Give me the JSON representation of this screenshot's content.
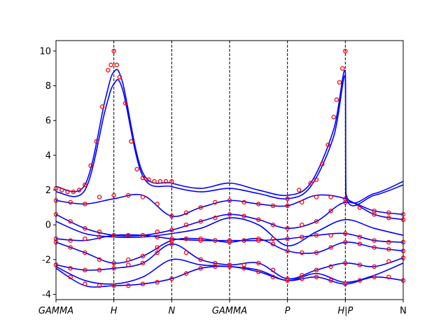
{
  "chart_data": {
    "type": "line",
    "title": "",
    "xlabel": "",
    "ylabel": "",
    "ylim": [
      -4.3,
      10.6
    ],
    "grid": false,
    "legend": "none",
    "y_ticks": [
      10,
      8,
      6,
      4,
      2,
      0,
      -2,
      -4
    ],
    "x_ticks": [
      {
        "x": 0.0,
        "label": "GAMMA",
        "italic": true,
        "vline": false
      },
      {
        "x": 1.0,
        "label": "H",
        "italic": true,
        "vline": true
      },
      {
        "x": 2.0,
        "label": "N",
        "italic": true,
        "vline": true
      },
      {
        "x": 3.0,
        "label": "GAMMA",
        "italic": true,
        "vline": true
      },
      {
        "x": 4.0,
        "label": "P",
        "italic": true,
        "vline": true
      },
      {
        "x": 5.0,
        "label": "H|P",
        "italic": true,
        "vline": true
      },
      {
        "x": 6.0,
        "label": "N",
        "italic": false,
        "vline": false
      }
    ],
    "colors": {
      "interpolated": "#0000ff",
      "dft": "#ff0000",
      "vline": "#000000"
    },
    "series": [
      {
        "kind": "interpolated-line",
        "x": [
          0,
          0.5,
          0.85,
          1,
          1.15,
          1.5,
          2,
          2.5,
          3,
          3.5,
          4,
          4.4,
          4.8,
          5,
          5.01,
          5.5,
          6
        ],
        "y": [
          2.2,
          2.3,
          7.2,
          8.8,
          8.2,
          3.0,
          2.4,
          2.1,
          2.4,
          2.0,
          1.7,
          2.4,
          5.5,
          8.8,
          1.8,
          1.8,
          2.5
        ]
      },
      {
        "kind": "interpolated-line",
        "x": [
          0,
          0.5,
          0.85,
          1,
          1.15,
          1.5,
          2,
          2.5,
          3,
          3.5,
          4,
          4.4,
          4.8,
          5,
          5.01,
          5.5,
          6
        ],
        "y": [
          1.9,
          2.0,
          6.6,
          8.1,
          7.8,
          2.8,
          2.2,
          1.9,
          2.1,
          1.8,
          1.5,
          2.2,
          5.1,
          8.5,
          1.6,
          1.7,
          2.3
        ]
      },
      {
        "kind": "interpolated-line",
        "x": [
          0,
          0.5,
          1,
          1.5,
          2,
          2.5,
          3,
          3.5,
          4,
          4.5,
          5,
          5.5,
          6
        ],
        "y": [
          1.4,
          1.2,
          1.5,
          1.7,
          0.5,
          1.0,
          1.4,
          1.2,
          1.1,
          1.7,
          1.5,
          0.6,
          0.3
        ]
      },
      {
        "kind": "interpolated-line",
        "x": [
          0,
          0.5,
          1,
          1.5,
          2,
          2.5,
          3,
          3.5,
          4,
          4.5,
          5,
          5.5,
          6
        ],
        "y": [
          0.6,
          -0.2,
          -0.6,
          -0.6,
          -0.3,
          0.2,
          0.6,
          0.3,
          -0.2,
          0.2,
          1.3,
          0.8,
          0.6
        ]
      },
      {
        "kind": "interpolated-line",
        "x": [
          0,
          0.5,
          1,
          1.5,
          2,
          2.5,
          3,
          3.5,
          4,
          4.5,
          5,
          5.5,
          6
        ],
        "y": [
          0.2,
          -0.5,
          -0.7,
          -0.7,
          -0.5,
          -0.2,
          0.4,
          0.0,
          -1.2,
          -0.4,
          0.3,
          -0.2,
          -0.6
        ]
      },
      {
        "kind": "interpolated-line",
        "x": [
          0,
          0.5,
          1,
          1.5,
          2,
          2.5,
          3,
          3.5,
          4,
          4.5,
          5,
          5.5,
          6
        ],
        "y": [
          -0.8,
          -0.9,
          -0.6,
          -0.6,
          -0.8,
          -0.9,
          -0.9,
          -0.9,
          -0.8,
          -0.6,
          -0.5,
          -0.9,
          -1.0
        ]
      },
      {
        "kind": "interpolated-line",
        "x": [
          0,
          0.5,
          1,
          1.5,
          2,
          2.5,
          3,
          3.5,
          4,
          4.5,
          5,
          5.5,
          6
        ],
        "y": [
          -1.0,
          -1.6,
          -2.2,
          -1.8,
          -0.9,
          -0.8,
          -1.0,
          -0.8,
          -1.5,
          -1.6,
          -1.0,
          -1.3,
          -1.5
        ]
      },
      {
        "kind": "interpolated-line",
        "x": [
          0,
          0.5,
          1,
          1.5,
          2,
          2.5,
          3,
          3.5,
          4,
          4.5,
          5,
          5.5,
          6
        ],
        "y": [
          -2.3,
          -2.6,
          -2.5,
          -2.2,
          -1.1,
          -2.0,
          -2.3,
          -2.2,
          -3.1,
          -2.6,
          -2.2,
          -2.4,
          -1.9
        ]
      },
      {
        "kind": "interpolated-line",
        "x": [
          0,
          0.5,
          1,
          1.5,
          2,
          2.5,
          3,
          3.5,
          4,
          4.5,
          5,
          5.5,
          6
        ],
        "y": [
          -2.4,
          -3.2,
          -3.4,
          -3.0,
          -2.0,
          -2.3,
          -2.4,
          -2.6,
          -3.2,
          -2.8,
          -3.3,
          -2.9,
          -2.2
        ]
      },
      {
        "kind": "interpolated-line",
        "x": [
          0,
          0.5,
          1,
          1.5,
          2,
          2.5,
          3,
          3.5,
          4,
          4.5,
          5,
          5.5,
          6
        ],
        "y": [
          -2.5,
          -3.5,
          -3.5,
          -3.4,
          -3.1,
          -2.5,
          -2.4,
          -2.7,
          -3.2,
          -3.0,
          -3.4,
          -3.0,
          -3.2
        ]
      },
      {
        "kind": "dft-points",
        "x": [
          0,
          0.1,
          0.2,
          0.3,
          0.4,
          0.5,
          0.6,
          0.7,
          0.8,
          0.9,
          0.95,
          1.0,
          1.05,
          1.1,
          1.2,
          1.3,
          1.4,
          1.5,
          1.6,
          1.7,
          1.8,
          1.9,
          2.0
        ],
        "y": [
          2.1,
          2.0,
          1.9,
          1.9,
          2.0,
          2.3,
          3.4,
          4.8,
          6.8,
          8.9,
          9.2,
          10.0,
          9.2,
          8.5,
          7.0,
          4.8,
          3.2,
          2.7,
          2.6,
          2.5,
          2.5,
          2.5,
          2.5
        ]
      },
      {
        "kind": "dft-points",
        "x": [
          4.0,
          4.2,
          4.4,
          4.5,
          4.6,
          4.7,
          4.8,
          4.85,
          4.9,
          4.95,
          5.0
        ],
        "y": [
          1.5,
          2.0,
          2.4,
          2.6,
          3.5,
          4.6,
          6.2,
          7.2,
          8.2,
          9.0,
          10.0
        ]
      },
      {
        "kind": "dft-points",
        "x": [
          0,
          0.25,
          0.5,
          0.75,
          1,
          1.25,
          1.5,
          1.75,
          2,
          2.25,
          2.5,
          2.75,
          3,
          3.25,
          3.5,
          3.75,
          4,
          4.25,
          4.5,
          4.75,
          5,
          5.25,
          5.5,
          5.75,
          6
        ],
        "y": [
          1.4,
          1.3,
          1.2,
          1.6,
          1.7,
          1.7,
          1.6,
          1.2,
          0.5,
          0.7,
          1.0,
          1.3,
          1.4,
          1.3,
          1.2,
          1.1,
          1.1,
          1.3,
          1.6,
          1.6,
          1.5,
          1.0,
          0.6,
          0.4,
          0.3
        ]
      },
      {
        "kind": "dft-points",
        "x": [
          0,
          0.25,
          0.5,
          0.75,
          1,
          1.25,
          1.5,
          1.75,
          2,
          2.25,
          2.5,
          2.75,
          3,
          3.25,
          3.5,
          3.75,
          4,
          4.25,
          4.5,
          4.75,
          5,
          5.25,
          5.5,
          5.75,
          6
        ],
        "y": [
          -2.3,
          -3.0,
          -3.4,
          -3.5,
          -3.5,
          -3.5,
          -3.4,
          -3.3,
          -3.1,
          -2.8,
          -2.5,
          -2.4,
          -2.4,
          -2.5,
          -2.7,
          -3.0,
          -3.2,
          -3.1,
          -3.0,
          -3.2,
          -3.4,
          -3.2,
          -3.0,
          -3.0,
          -3.2
        ]
      },
      {
        "kind": "dft-points",
        "x": [
          0,
          0.25,
          0.5,
          0.75,
          1,
          1.25,
          1.5,
          1.75,
          2,
          2.25,
          2.5,
          2.75,
          3,
          3.25,
          3.5,
          3.75,
          4,
          4.25,
          4.5,
          4.75,
          5,
          5.25,
          5.5,
          5.75,
          6
        ],
        "y": [
          -0.8,
          -0.9,
          -0.8,
          -0.7,
          -0.6,
          -0.6,
          -0.6,
          -0.7,
          -0.8,
          -0.8,
          -0.9,
          -0.9,
          -0.9,
          -0.9,
          -0.9,
          -0.8,
          -0.8,
          -0.7,
          -0.6,
          -0.6,
          -0.5,
          -0.7,
          -0.9,
          -1.0,
          -1.0
        ]
      },
      {
        "kind": "dft-points",
        "x": [
          0,
          0.25,
          0.5,
          0.75,
          1,
          1.25,
          1.5,
          1.75,
          2,
          2.25,
          2.5,
          2.75,
          3,
          3.25,
          3.5,
          3.75,
          4,
          4.25,
          4.5,
          4.75,
          5,
          5.25,
          5.5,
          5.75,
          6
        ],
        "y": [
          -2.3,
          -2.5,
          -2.6,
          -2.6,
          -2.5,
          -2.3,
          -2.2,
          -1.6,
          -1.1,
          -1.6,
          -2.0,
          -2.2,
          -2.3,
          -2.3,
          -2.2,
          -2.6,
          -3.1,
          -2.9,
          -2.6,
          -2.4,
          -2.2,
          -2.3,
          -2.4,
          -2.1,
          -1.9
        ]
      },
      {
        "kind": "dft-points",
        "x": [
          0,
          0.25,
          0.5,
          0.75,
          1,
          1.25,
          1.5,
          1.75,
          2,
          2.25,
          2.5,
          2.75,
          3,
          3.25,
          3.5,
          3.75,
          4,
          4.25,
          4.5,
          4.75,
          5,
          5.25,
          5.5,
          5.75,
          6
        ],
        "y": [
          0.6,
          0.2,
          -0.2,
          -0.4,
          -0.6,
          -0.6,
          -0.6,
          -0.4,
          -0.3,
          0.0,
          0.2,
          0.4,
          0.6,
          0.5,
          0.3,
          0.0,
          -0.2,
          0.0,
          0.2,
          0.8,
          1.3,
          1.0,
          0.8,
          0.7,
          0.6
        ]
      },
      {
        "kind": "dft-points",
        "x": [
          0,
          0.25,
          0.5,
          0.75,
          1,
          1.25,
          1.5,
          1.75,
          2,
          2.25,
          2.5,
          2.75,
          3,
          3.25,
          3.5,
          3.75,
          4,
          4.25,
          4.5,
          4.75,
          5,
          5.25,
          5.5,
          5.75,
          6
        ],
        "y": [
          -1.0,
          -1.3,
          -1.6,
          -2.0,
          -2.2,
          -2.0,
          -1.8,
          -1.3,
          -0.9,
          -0.8,
          -0.8,
          -0.9,
          -1.0,
          -0.9,
          -0.8,
          -1.1,
          -1.5,
          -1.6,
          -1.6,
          -1.3,
          -1.0,
          -1.1,
          -1.3,
          -1.4,
          -1.5
        ]
      }
    ]
  }
}
